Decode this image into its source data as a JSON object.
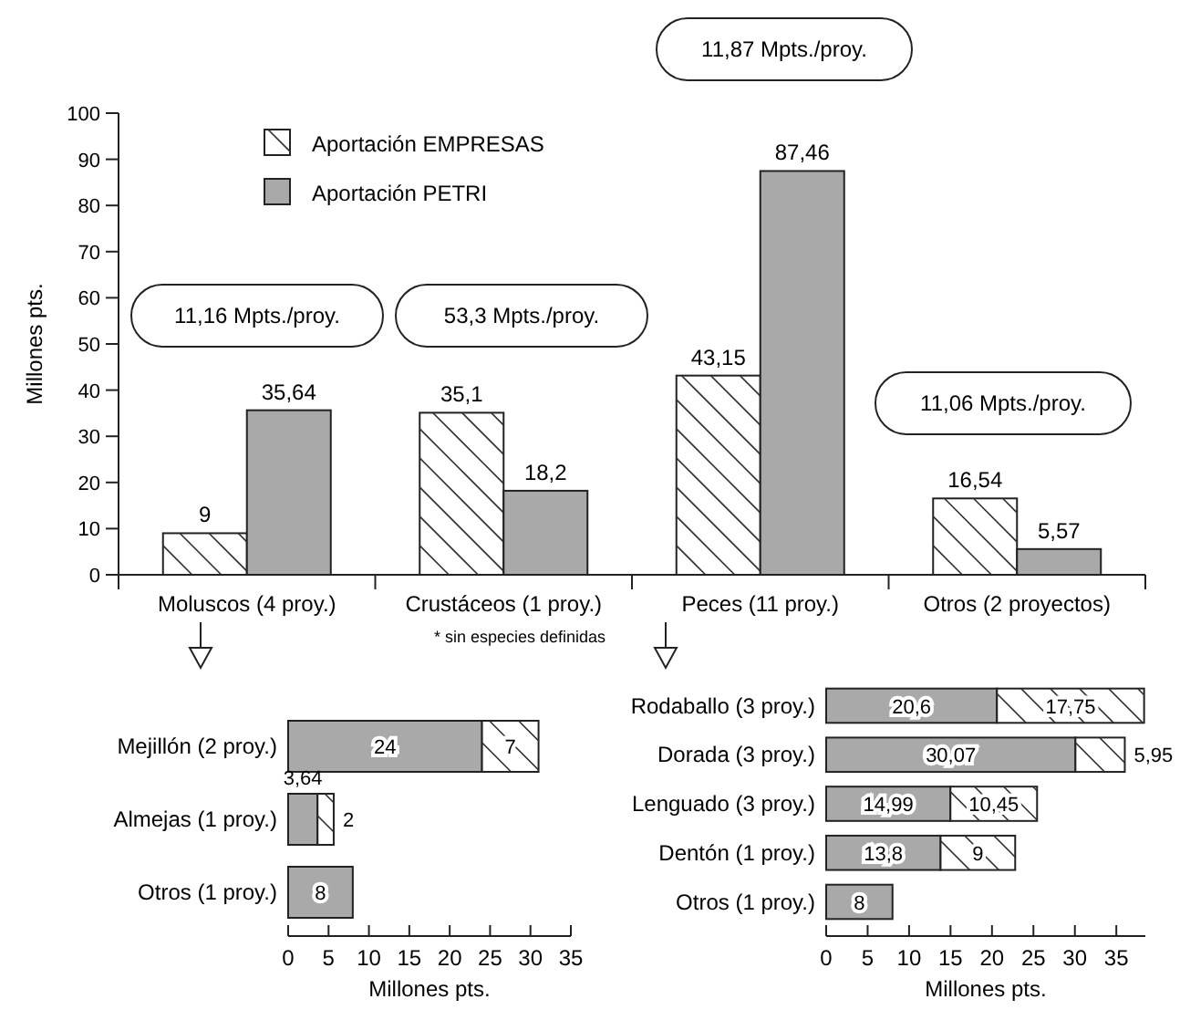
{
  "chart_data": [
    {
      "type": "bar",
      "categories": [
        "Moluscos (4 proy.)",
        "Crustáceos (1 proy.)",
        "Peces (11 proy.)",
        "Otros (2 proyectos)"
      ],
      "series": [
        {
          "name": "Aportación EMPRESAS",
          "color": "#ffffff",
          "values": [
            9,
            35.1,
            43.15,
            16.54
          ],
          "value_labels": [
            "9",
            "35,1",
            "43,15",
            "16,54"
          ]
        },
        {
          "name": "Aportación PETRI",
          "color": "#a9a9a9",
          "values": [
            35.64,
            18.2,
            87.46,
            5.57
          ],
          "value_labels": [
            "35,64",
            "18,2",
            "87,46",
            "5,57"
          ]
        }
      ],
      "ylabel": "Millones pts.",
      "ylim": [
        0,
        100
      ],
      "yticks": [
        0,
        10,
        20,
        30,
        40,
        50,
        60,
        70,
        80,
        90,
        100
      ],
      "legend": "top left",
      "annotations": [
        "11,16 Mpts./proy.",
        "53,3 Mpts./proy.",
        "11,87 Mpts./proy.",
        "11,06 Mpts./proy.",
        "* sin especies definidas"
      ]
    },
    {
      "type": "bar",
      "orientation": "horizontal",
      "stacked": true,
      "categories": [
        "Mejillón (2 proy.)",
        "Almejas (1 proy.)",
        "Otros (1 proy.)"
      ],
      "series": [
        {
          "color": "#a9a9a9",
          "values": [
            24,
            3.64,
            8
          ],
          "value_labels": [
            "24",
            "3,64",
            "8"
          ]
        },
        {
          "color": "#ffffff",
          "values": [
            7,
            2,
            null
          ],
          "value_labels": [
            "7",
            "2",
            null
          ]
        }
      ],
      "xlabel": "Millones pts.",
      "xlim": [
        0,
        35
      ],
      "xticks": [
        0,
        5,
        10,
        15,
        20,
        25,
        30,
        35
      ]
    },
    {
      "type": "bar",
      "orientation": "horizontal",
      "stacked": true,
      "categories": [
        "Rodaballo (3 proy.)",
        "Dorada (3 proy.)",
        "Lenguado (3 proy.)",
        "Dentón (1 proy.)",
        "Otros (1 proy.)"
      ],
      "series": [
        {
          "color": "#a9a9a9",
          "values": [
            20.6,
            30.07,
            14.99,
            13.8,
            8
          ],
          "value_labels": [
            "20,6",
            "30,07",
            "14,99",
            "13,8",
            "8"
          ]
        },
        {
          "color": "#ffffff",
          "values": [
            17.75,
            5.95,
            10.45,
            9,
            null
          ],
          "value_labels": [
            "17,75",
            "5,95",
            "10,45",
            "9",
            null
          ]
        }
      ],
      "xlabel": "Millones pts.",
      "xlim": [
        0,
        38.5
      ],
      "xticks": [
        0,
        5,
        10,
        15,
        20,
        25,
        30,
        35
      ]
    }
  ]
}
